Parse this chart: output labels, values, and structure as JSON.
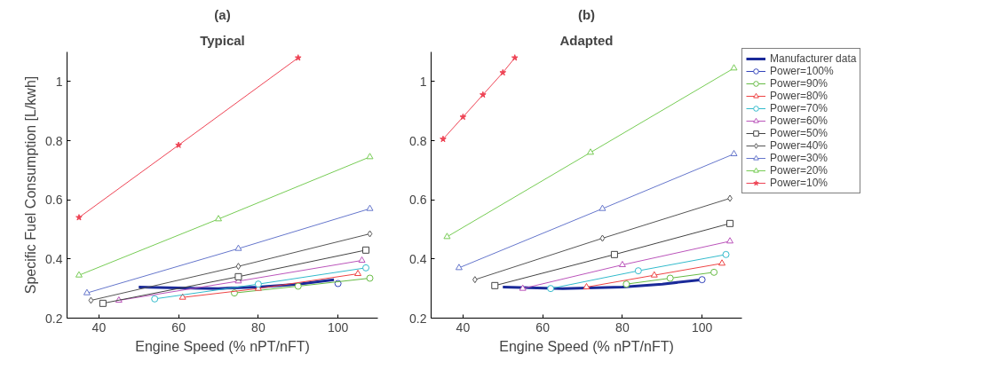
{
  "chart_data": [
    {
      "type": "line",
      "title": "(a)",
      "subtitle": "Typical",
      "xlabel": "Engine Speed (% nPT/nFT)",
      "ylabel": "Specific Fuel Consumption [L/kwh]",
      "xlim": [
        32,
        110
      ],
      "ylim": [
        0.2,
        1.1
      ],
      "xticks": [
        40,
        60,
        80,
        100
      ],
      "yticks": [
        0.2,
        0.4,
        0.6,
        0.8,
        1
      ],
      "grid": false,
      "series": [
        {
          "color": "#1a2a99",
          "marker": "none",
          "x": [
            50,
            60,
            70,
            80,
            90,
            99
          ],
          "values": [
            0.305,
            0.302,
            0.3,
            0.305,
            0.315,
            0.33
          ]
        },
        {
          "color": "#3344bb",
          "marker": "circle",
          "x": [
            100
          ],
          "values": [
            0.317
          ]
        },
        {
          "color": "#66bb44",
          "marker": "circle",
          "x": [
            74,
            90,
            108
          ],
          "values": [
            0.285,
            0.308,
            0.335
          ]
        },
        {
          "color": "#ee4444",
          "marker": "triangle",
          "x": [
            61,
            80,
            105
          ],
          "values": [
            0.27,
            0.3,
            0.35
          ]
        },
        {
          "color": "#33bbcc",
          "marker": "circle",
          "x": [
            54,
            80,
            107
          ],
          "values": [
            0.265,
            0.315,
            0.37
          ]
        },
        {
          "color": "#bb55bb",
          "marker": "triangle",
          "x": [
            45,
            75,
            106
          ],
          "values": [
            0.26,
            0.325,
            0.395
          ]
        },
        {
          "color": "#444444",
          "marker": "square",
          "x": [
            41,
            75,
            107
          ],
          "values": [
            0.25,
            0.34,
            0.43
          ]
        },
        {
          "color": "#555555",
          "marker": "diamond",
          "x": [
            38,
            75,
            108
          ],
          "values": [
            0.26,
            0.375,
            0.485
          ]
        },
        {
          "color": "#6677cc",
          "marker": "triangle",
          "x": [
            37,
            75,
            108
          ],
          "values": [
            0.285,
            0.435,
            0.57
          ]
        },
        {
          "color": "#77cc55",
          "marker": "triangle",
          "x": [
            35,
            70,
            108
          ],
          "values": [
            0.345,
            0.535,
            0.745
          ]
        },
        {
          "color": "#ee4455",
          "marker": "star",
          "x": [
            35,
            60,
            90
          ],
          "values": [
            0.54,
            0.785,
            1.08
          ]
        }
      ]
    },
    {
      "type": "line",
      "title": "(b)",
      "subtitle": "Adapted",
      "xlabel": "Engine Speed (% nPT/nFT)",
      "xlim": [
        32,
        110
      ],
      "ylim": [
        0.2,
        1.1
      ],
      "xticks": [
        40,
        60,
        80,
        100
      ],
      "yticks": [
        0.2,
        0.4,
        0.6,
        0.8,
        1
      ],
      "grid": false,
      "legend": "right",
      "series": [
        {
          "name": "Manufacturer data",
          "color": "#1a2a99",
          "marker": "none",
          "x": [
            50,
            65,
            80,
            90,
            100
          ],
          "values": [
            0.305,
            0.3,
            0.305,
            0.315,
            0.33
          ]
        },
        {
          "name": "Power=100%",
          "color": "#3344bb",
          "marker": "circle",
          "x": [
            100
          ],
          "values": [
            0.33
          ]
        },
        {
          "name": "Power=90%",
          "color": "#66bb44",
          "marker": "circle",
          "x": [
            81,
            92,
            103
          ],
          "values": [
            0.315,
            0.335,
            0.355
          ]
        },
        {
          "name": "Power=80%",
          "color": "#ee4444",
          "marker": "triangle",
          "x": [
            71,
            88,
            105
          ],
          "values": [
            0.305,
            0.345,
            0.385
          ]
        },
        {
          "name": "Power=70%",
          "color": "#33bbcc",
          "marker": "circle",
          "x": [
            62,
            84,
            106
          ],
          "values": [
            0.3,
            0.36,
            0.415
          ]
        },
        {
          "name": "Power=60%",
          "color": "#bb55bb",
          "marker": "triangle",
          "x": [
            55,
            80,
            107
          ],
          "values": [
            0.3,
            0.38,
            0.46
          ]
        },
        {
          "name": "Power=50%",
          "color": "#444444",
          "marker": "square",
          "x": [
            48,
            78,
            107
          ],
          "values": [
            0.31,
            0.415,
            0.52
          ]
        },
        {
          "name": "Power=40%",
          "color": "#555555",
          "marker": "diamond",
          "x": [
            43,
            75,
            107
          ],
          "values": [
            0.33,
            0.47,
            0.605
          ]
        },
        {
          "name": "Power=30%",
          "color": "#6677cc",
          "marker": "triangle",
          "x": [
            39,
            75,
            108
          ],
          "values": [
            0.37,
            0.57,
            0.755
          ]
        },
        {
          "name": "Power=20%",
          "color": "#77cc55",
          "marker": "triangle",
          "x": [
            36,
            72,
            108
          ],
          "values": [
            0.475,
            0.76,
            1.045
          ]
        },
        {
          "name": "Power=10%",
          "color": "#ee4455",
          "marker": "star",
          "x": [
            35,
            40,
            45,
            50,
            53
          ],
          "values": [
            0.805,
            0.88,
            0.955,
            1.03,
            1.08
          ]
        }
      ]
    }
  ]
}
